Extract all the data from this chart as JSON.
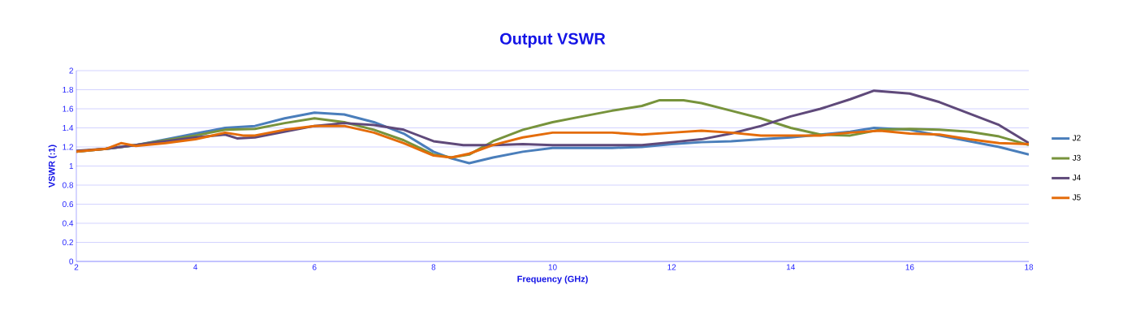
{
  "chart_data": {
    "type": "line",
    "title": "Output VSWR",
    "xlabel": "Frequency (GHz)",
    "ylabel": "VSWR (:1)",
    "xlim": [
      2,
      18
    ],
    "xticks": [
      2,
      4,
      6,
      8,
      10,
      12,
      14,
      16,
      18
    ],
    "ylim": [
      0,
      2
    ],
    "yticks": [
      0,
      0.2,
      0.4,
      0.6,
      0.8,
      1,
      1.2,
      1.4,
      1.6,
      1.8,
      2
    ],
    "grid": "y",
    "legend": "right",
    "marker": "none",
    "line_style": "solid",
    "series": [
      {
        "name": "J2",
        "color": "#4a7ebb",
        "x": [
          2,
          2.5,
          3,
          3.5,
          4,
          4.5,
          5,
          5.5,
          6,
          6.5,
          7,
          7.5,
          8,
          8.3,
          8.6,
          9,
          9.5,
          10,
          10.5,
          11,
          11.5,
          12,
          12.5,
          13,
          13.5,
          14,
          14.5,
          15,
          15.4,
          16,
          16.5,
          17,
          17.5,
          18
        ],
        "values": [
          1.15,
          1.18,
          1.22,
          1.28,
          1.34,
          1.4,
          1.42,
          1.5,
          1.56,
          1.54,
          1.46,
          1.34,
          1.15,
          1.08,
          1.03,
          1.09,
          1.15,
          1.19,
          1.19,
          1.19,
          1.2,
          1.23,
          1.25,
          1.26,
          1.28,
          1.3,
          1.33,
          1.36,
          1.4,
          1.38,
          1.32,
          1.26,
          1.2,
          1.12
        ]
      },
      {
        "name": "J3",
        "color": "#77933c",
        "x": [
          2,
          2.5,
          3,
          3.5,
          4,
          4.5,
          5,
          5.5,
          6,
          6.5,
          7,
          7.5,
          8,
          8.3,
          8.6,
          9,
          9.5,
          10,
          10.5,
          11,
          11.5,
          11.8,
          12.2,
          12.5,
          13,
          13.5,
          14,
          14.5,
          15,
          15.5,
          16,
          16.5,
          17,
          17.5,
          18
        ],
        "values": [
          1.15,
          1.18,
          1.22,
          1.27,
          1.32,
          1.38,
          1.39,
          1.45,
          1.5,
          1.46,
          1.38,
          1.27,
          1.12,
          1.09,
          1.12,
          1.26,
          1.38,
          1.46,
          1.52,
          1.58,
          1.63,
          1.69,
          1.69,
          1.66,
          1.58,
          1.5,
          1.4,
          1.33,
          1.32,
          1.38,
          1.39,
          1.38,
          1.36,
          1.31,
          1.22
        ]
      },
      {
        "name": "J4",
        "color": "#5f497a",
        "x": [
          2,
          2.5,
          3,
          3.5,
          4,
          4.5,
          4.7,
          5,
          5.5,
          6,
          6.5,
          7,
          7.5,
          8,
          8.5,
          9,
          9.5,
          10,
          10.5,
          11,
          11.5,
          12,
          12.5,
          13,
          13.5,
          14,
          14.5,
          15,
          15.4,
          16,
          16.5,
          17,
          17.5,
          18
        ],
        "values": [
          1.16,
          1.18,
          1.22,
          1.26,
          1.3,
          1.33,
          1.29,
          1.3,
          1.36,
          1.42,
          1.45,
          1.43,
          1.38,
          1.26,
          1.22,
          1.22,
          1.23,
          1.22,
          1.22,
          1.22,
          1.22,
          1.25,
          1.28,
          1.34,
          1.42,
          1.52,
          1.6,
          1.7,
          1.79,
          1.76,
          1.67,
          1.55,
          1.43,
          1.24
        ]
      },
      {
        "name": "J5",
        "color": "#e46c0a",
        "x": [
          2,
          2.5,
          2.75,
          3,
          3.5,
          4,
          4.5,
          4.8,
          5,
          5.5,
          6,
          6.5,
          7,
          7.5,
          8,
          8.3,
          8.6,
          9,
          9.5,
          10,
          10.5,
          11,
          11.5,
          12,
          12.5,
          13,
          13.5,
          14,
          14.5,
          15,
          15.5,
          16,
          16.5,
          17,
          17.5,
          18
        ],
        "values": [
          1.15,
          1.18,
          1.24,
          1.21,
          1.24,
          1.28,
          1.35,
          1.32,
          1.32,
          1.38,
          1.42,
          1.42,
          1.35,
          1.24,
          1.11,
          1.09,
          1.13,
          1.22,
          1.3,
          1.35,
          1.35,
          1.35,
          1.33,
          1.35,
          1.37,
          1.35,
          1.32,
          1.32,
          1.32,
          1.35,
          1.37,
          1.34,
          1.33,
          1.28,
          1.24,
          1.23
        ]
      }
    ]
  }
}
